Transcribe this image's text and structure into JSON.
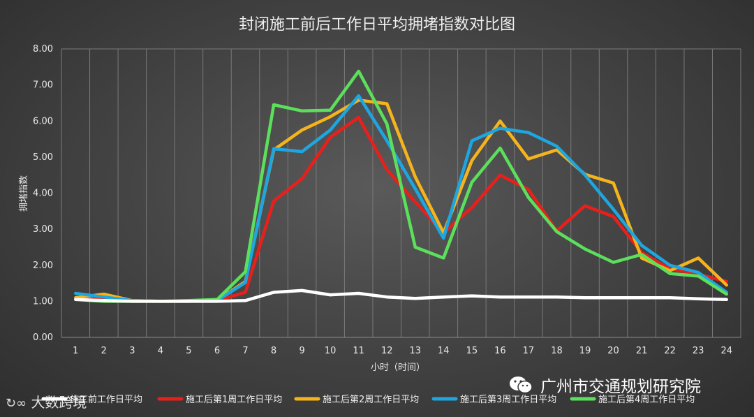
{
  "chart_data": {
    "type": "line",
    "title": "封闭施工前后工作日平均拥堵指数对比图",
    "xlabel": "小时（时间）",
    "ylabel": "拥堵指数",
    "ylim": [
      0,
      8
    ],
    "yticks": [
      "0.00",
      "1.00",
      "2.00",
      "3.00",
      "4.00",
      "5.00",
      "6.00",
      "7.00",
      "8.00"
    ],
    "categories": [
      "1",
      "2",
      "3",
      "4",
      "5",
      "6",
      "7",
      "8",
      "9",
      "10",
      "11",
      "12",
      "13",
      "14",
      "15",
      "16",
      "17",
      "18",
      "19",
      "20",
      "21",
      "22",
      "23",
      "24"
    ],
    "grid": "vertical",
    "legend": "bottom",
    "series": [
      {
        "name": "施工前工作日平均",
        "color": "#ffffff",
        "values": [
          1.05,
          1.02,
          1.0,
          1.0,
          1.0,
          1.0,
          1.02,
          1.25,
          1.3,
          1.18,
          1.22,
          1.12,
          1.08,
          1.12,
          1.15,
          1.12,
          1.12,
          1.12,
          1.1,
          1.1,
          1.1,
          1.1,
          1.07,
          1.05
        ]
      },
      {
        "name": "施工后第1周工作日平均",
        "color": "#e8201c",
        "values": [
          1.1,
          1.05,
          1.0,
          1.0,
          1.0,
          1.02,
          1.25,
          3.78,
          4.4,
          5.55,
          6.1,
          4.65,
          3.75,
          2.9,
          3.6,
          4.5,
          4.1,
          2.95,
          3.65,
          3.35,
          2.35,
          1.9,
          1.75,
          1.55
        ]
      },
      {
        "name": "施工后第2周工作日平均",
        "color": "#f5b41c",
        "values": [
          1.1,
          1.2,
          1.02,
          1.0,
          1.0,
          1.02,
          1.55,
          5.2,
          5.75,
          6.12,
          6.58,
          6.48,
          4.45,
          2.9,
          4.9,
          6.0,
          4.95,
          5.2,
          4.52,
          4.28,
          2.2,
          1.85,
          2.2,
          1.45
        ]
      },
      {
        "name": "施工后第3周工作日平均",
        "color": "#1ea6e0",
        "values": [
          1.22,
          1.12,
          1.02,
          1.0,
          1.0,
          1.02,
          1.52,
          5.23,
          5.15,
          5.75,
          6.7,
          5.45,
          4.12,
          2.75,
          5.45,
          5.8,
          5.68,
          5.3,
          4.5,
          3.55,
          2.55,
          2.0,
          1.8,
          1.25
        ]
      },
      {
        "name": "施工后第4周工作日平均",
        "color": "#5ce05c",
        "values": [
          1.05,
          1.0,
          1.0,
          1.0,
          1.02,
          1.05,
          1.82,
          6.45,
          6.28,
          6.3,
          7.38,
          5.92,
          2.5,
          2.2,
          4.3,
          5.25,
          3.88,
          2.93,
          2.45,
          2.08,
          2.3,
          1.77,
          1.7,
          1.2
        ]
      }
    ]
  },
  "watermark": {
    "left_text": "大数跨境",
    "right_text": "广州市交通规划研究院"
  }
}
